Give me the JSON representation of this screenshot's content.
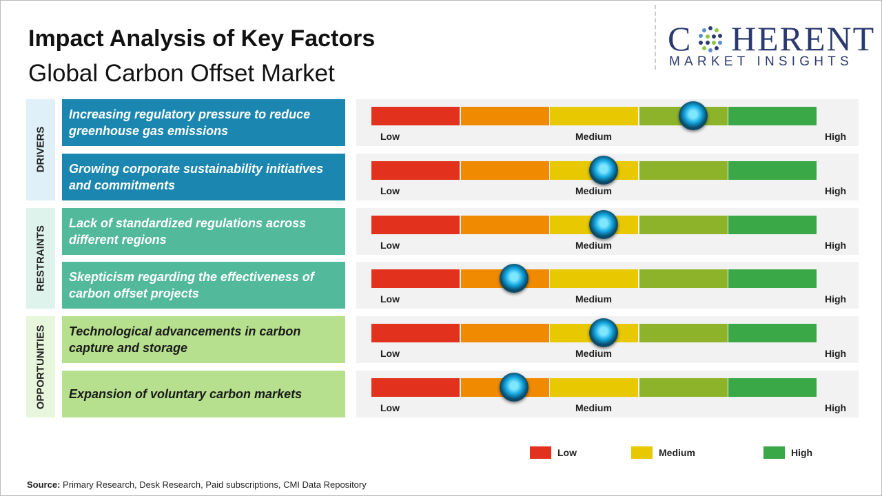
{
  "header": {
    "title": "Impact Analysis of Key Factors",
    "subtitle": "Global Carbon Offset Market"
  },
  "logo": {
    "name_start": "C",
    "name_end": "HERENT",
    "tagline": "MARKET INSIGHTS"
  },
  "scale": {
    "labels": [
      "Low",
      "Medium",
      "High"
    ],
    "max": 5,
    "colors": [
      "#e2311d",
      "#f08a00",
      "#e8c800",
      "#8db32a",
      "#3aa846"
    ]
  },
  "groups": [
    {
      "label": "DRIVERS",
      "background": "#dff0f8",
      "color": "#1b87b0",
      "text_color": "#ffffff",
      "factors": [
        {
          "text": "Increasing regulatory pressure to reduce greenhouse gas emissions",
          "level": 3.6
        },
        {
          "text": "Growing corporate sustainability initiatives and commitments",
          "level": 2.6
        }
      ]
    },
    {
      "label": "RESTRAINTS",
      "background": "#def3ec",
      "color": "#52b99a",
      "text_color": "#ffffff",
      "factors": [
        {
          "text": "Lack of standardized regulations across different regions",
          "level": 2.6
        },
        {
          "text": "Skepticism regarding the effectiveness of carbon offset projects",
          "level": 1.6
        }
      ]
    },
    {
      "label": "OPPORTUNITIES",
      "background": "#e8f6dc",
      "color": "#b6e08d",
      "text_color": "#1a1a1a",
      "factors": [
        {
          "text": "Technological advancements in carbon capture and storage",
          "level": 2.6
        },
        {
          "text": "Expansion of voluntary carbon markets",
          "level": 1.6
        }
      ]
    }
  ],
  "legend": [
    {
      "label": "Low",
      "color": "#e2311d"
    },
    {
      "label": "Medium",
      "color": "#e8c800"
    },
    {
      "label": "High",
      "color": "#3aa846"
    }
  ],
  "source": {
    "label": "Source:",
    "text": "Primary Research, Desk Research, Paid subscriptions, CMI Data Repository"
  }
}
